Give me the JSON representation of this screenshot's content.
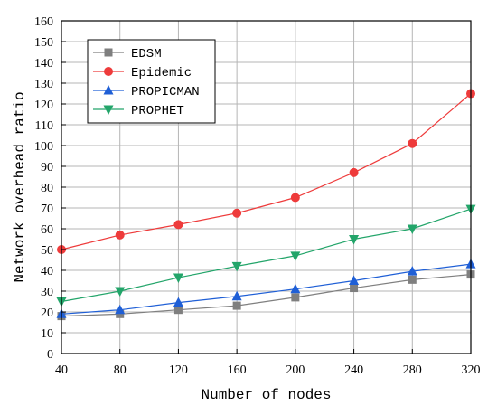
{
  "chart_data": {
    "type": "line",
    "xlabel": "Number of nodes",
    "ylabel": "Network overhead ratio",
    "x": [
      40,
      80,
      120,
      160,
      200,
      240,
      280,
      320
    ],
    "xlim": [
      40,
      320
    ],
    "ylim": [
      0,
      160
    ],
    "y_ticks": [
      0,
      10,
      20,
      30,
      40,
      50,
      60,
      70,
      80,
      90,
      100,
      110,
      120,
      130,
      140,
      150,
      160
    ],
    "grid": true,
    "legend_position": "top-left",
    "series": [
      {
        "name": "EDSM",
        "color": "#7f7f7f",
        "marker": "square",
        "values": [
          18,
          19,
          21,
          23,
          27,
          31.5,
          35.5,
          38
        ]
      },
      {
        "name": "Epidemic",
        "color": "#ee3b3b",
        "marker": "circle",
        "values": [
          50,
          57,
          62,
          67.5,
          75,
          87,
          101,
          125
        ]
      },
      {
        "name": "PROPICMAN",
        "color": "#1f5fd6",
        "marker": "triangle-up",
        "values": [
          19,
          21,
          24.5,
          27.5,
          31,
          35,
          39.5,
          43
        ]
      },
      {
        "name": "PROPHET",
        "color": "#23a56a",
        "marker": "triangle-down",
        "values": [
          25,
          30,
          36.5,
          42,
          47,
          55,
          60,
          69.5
        ]
      }
    ]
  }
}
